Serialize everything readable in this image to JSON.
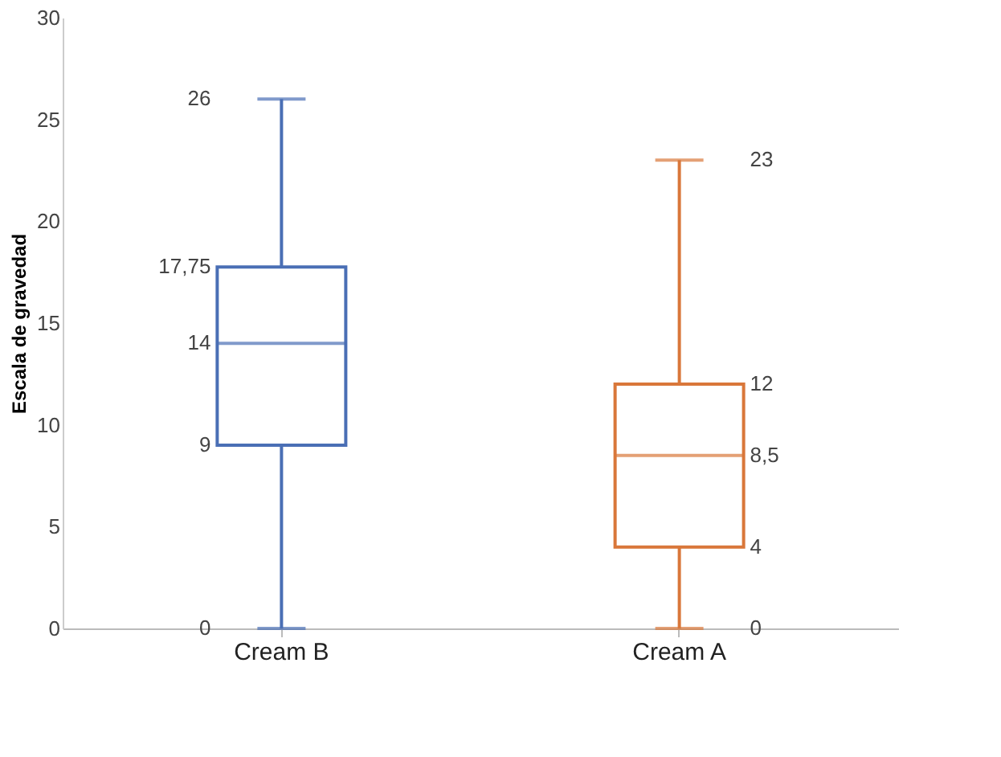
{
  "chart_data": {
    "type": "box",
    "ylabel": "Escala de gravedad",
    "categories": [
      "Cream B",
      "Cream A"
    ],
    "boxes": [
      {
        "low": 0,
        "q1": 9,
        "median": 14,
        "q3": 17.75,
        "high": 26
      },
      {
        "low": 0,
        "q1": 4,
        "median": 8.5,
        "q3": 12,
        "high": 23
      }
    ],
    "value_labels": [
      [
        "0",
        "9",
        "14",
        "17,75",
        "26"
      ],
      [
        "0",
        "4",
        "8,5",
        "12",
        "23"
      ]
    ],
    "colors": [
      "#4a6fb5",
      "#d9773a"
    ],
    "ylim": [
      0,
      30
    ],
    "yticks": [
      0,
      5,
      10,
      15,
      20,
      25,
      30
    ],
    "grid": false,
    "legend": false
  }
}
